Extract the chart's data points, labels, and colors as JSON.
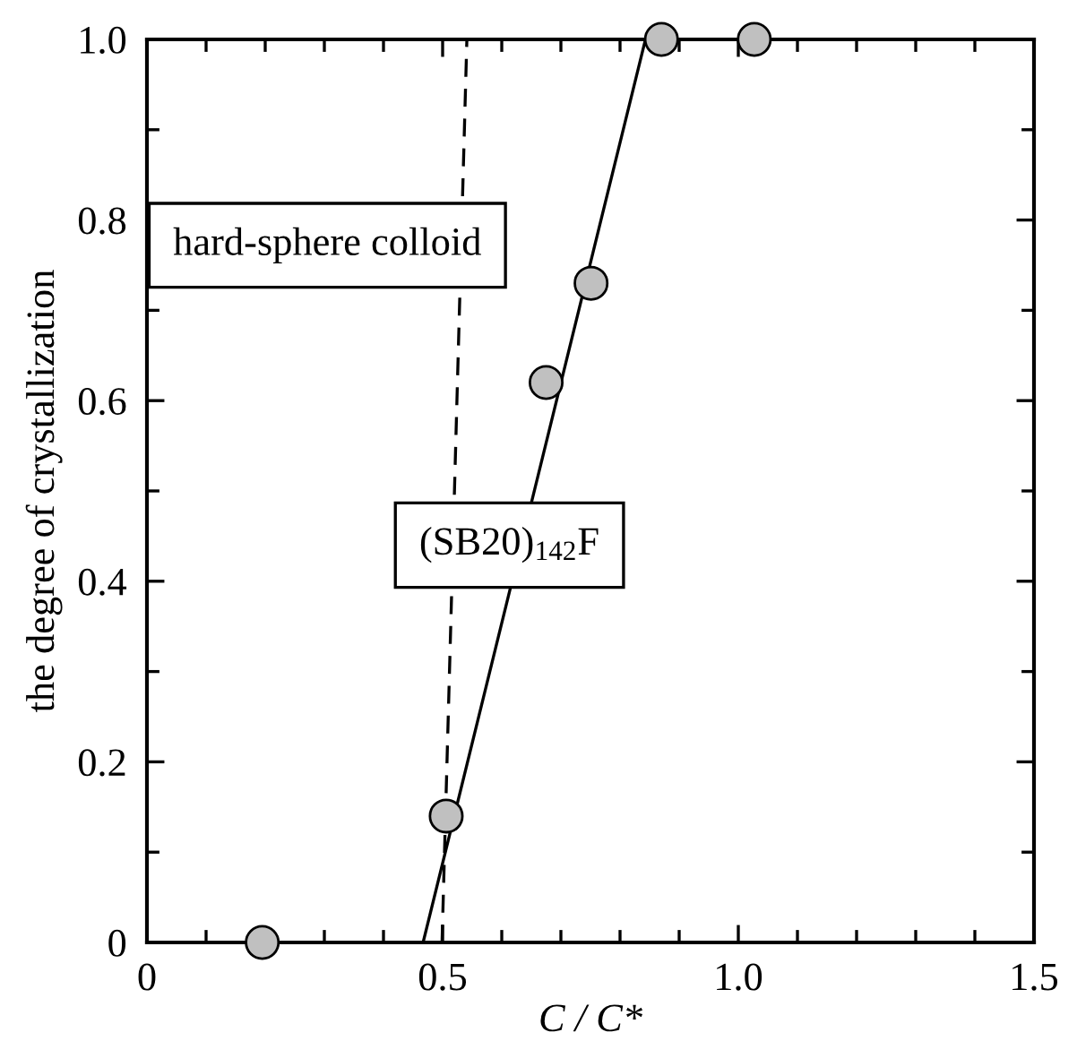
{
  "chart_data": {
    "type": "scatter",
    "xlabel": "C / C*",
    "ylabel": "the degree of crystallization",
    "annotations": [
      "hard-sphere colloid",
      "(SB20)$_{142}$F"
    ],
    "xlim": [
      0,
      1.5
    ],
    "ylim": [
      0,
      1.0
    ],
    "xticks": [
      0,
      {
        "value": 0.1,
        "label": null
      },
      {
        "value": 0.2,
        "label": null
      },
      {
        "value": 0.3,
        "label": null
      },
      {
        "value": 0.4,
        "label": null
      },
      0.5,
      {
        "value": 0.6,
        "label": null
      },
      {
        "value": 0.7,
        "label": null
      },
      {
        "value": 0.8,
        "label": null
      },
      {
        "value": 0.9,
        "label": null
      },
      {
        "value": 1.0,
        "label": "1.0"
      },
      {
        "value": 1.1,
        "label": null
      },
      {
        "value": 1.2,
        "label": null
      },
      {
        "value": 1.3,
        "label": null
      },
      {
        "value": 1.4,
        "label": null
      },
      1.5
    ],
    "yticks": [
      0,
      {
        "value": 0.1,
        "label": null
      },
      0.2,
      {
        "value": 0.3,
        "label": null
      },
      0.4,
      {
        "value": 0.5,
        "label": null
      },
      0.6,
      {
        "value": 0.7,
        "label": null
      },
      0.8,
      {
        "value": 0.9,
        "label": null
      },
      {
        "value": 1.0,
        "label": "1.0"
      }
    ],
    "grid": false,
    "legend": false,
    "series": [
      {
        "type": "line",
        "color": "#000000",
        "line_style": "dashed",
        "marker": "none",
        "x": [
          0.499,
          0.541
        ],
        "values": [
          0,
          1.0
        ]
      },
      {
        "type": "line",
        "color": "#000000",
        "line_style": "solid",
        "marker": "none",
        "x": [
          0.467,
          0.843
        ],
        "values": [
          0,
          1.0
        ]
      },
      {
        "color": "#c0c0c0",
        "marker": "circle",
        "x": [
          0.195,
          0.506,
          0.675,
          0.751,
          0.87,
          1.027
        ],
        "values": [
          0,
          0.14,
          0.62,
          0.73,
          1.0,
          1.0
        ]
      }
    ]
  }
}
